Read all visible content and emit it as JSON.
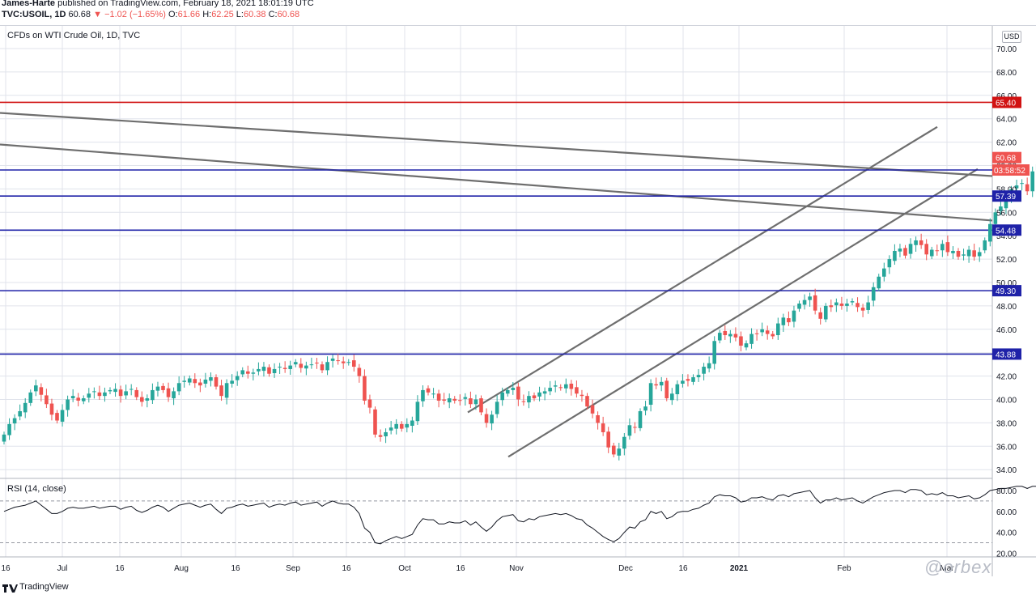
{
  "header": {
    "author": "James-Harte",
    "published": "published on TradingView.com, February 18, 2021 18:01:19 UTC",
    "symbol": "TVC:USOIL, 1D",
    "last": "60.68",
    "change": "−1.02 (−1.65%)",
    "open_label": "O:",
    "open": "61.66",
    "high_label": "H:",
    "high": "62.25",
    "low_label": "L:",
    "low": "60.38",
    "close_label": "C:",
    "close": "60.68"
  },
  "currency_badge": "USD",
  "footer": {
    "brand": "TradingView",
    "watermark": "@orbex"
  },
  "colors": {
    "up": "#26a69a",
    "down": "#ef5350",
    "level": "#1f22a8",
    "resistance": "#d11212",
    "trend": "#6e6e6e",
    "grid": "#e0e3eb"
  },
  "chart_data": [
    {
      "type": "candlestick",
      "title": "CFDs on WTI Crude Oil, 1D, TVC",
      "ylim": [
        33,
        71
      ],
      "y_ticks": [
        "70.00",
        "68.00",
        "66.00",
        "64.00",
        "62.00",
        "60.00",
        "58.00",
        "56.00",
        "54.00",
        "52.00",
        "50.00",
        "48.00",
        "46.00",
        "44.00",
        "42.00",
        "40.00",
        "38.00",
        "36.00",
        "34.00"
      ],
      "x_ticks": [
        "16",
        "Jul",
        "16",
        "Aug",
        "16",
        "Sep",
        "16",
        "Oct",
        "16",
        "Nov",
        "Dec",
        "16",
        "2021",
        "Feb",
        "Mar"
      ],
      "horizontal_levels": [
        {
          "price": 65.4,
          "label": "65.40",
          "color": "#d11212"
        },
        {
          "price": 59.62,
          "label": "59.62",
          "color": "#1f22a8"
        },
        {
          "price": 57.39,
          "label": "57.39",
          "color": "#1f22a8"
        },
        {
          "price": 54.48,
          "label": "54.48",
          "color": "#1f22a8"
        },
        {
          "price": 49.3,
          "label": "49.30",
          "color": "#1f22a8"
        },
        {
          "price": 43.88,
          "label": "43.88",
          "color": "#1f22a8"
        }
      ],
      "price_badges": [
        {
          "price": 60.68,
          "label": "60.68"
        },
        {
          "price": 59.62,
          "label": "03:58:52"
        }
      ],
      "closes": [
        37.0,
        37.9,
        38.4,
        39.0,
        39.7,
        40.6,
        41.2,
        40.4,
        39.6,
        38.7,
        38.2,
        39.1,
        40.0,
        40.3,
        39.9,
        40.1,
        40.5,
        40.7,
        40.3,
        40.6,
        40.8,
        40.9,
        40.3,
        40.7,
        40.9,
        40.2,
        39.8,
        40.1,
        40.8,
        41.1,
        40.8,
        40.2,
        40.7,
        41.4,
        41.6,
        41.8,
        41.4,
        41.2,
        41.7,
        41.9,
        41.1,
        40.3,
        41.4,
        41.6,
        42.0,
        42.5,
        42.2,
        42.3,
        42.6,
        42.8,
        42.2,
        42.6,
        42.8,
        42.6,
        42.9,
        43.2,
        42.7,
        42.9,
        43.0,
        43.1,
        42.5,
        43.2,
        43.5,
        43.3,
        43.1,
        43.2,
        42.8,
        42.0,
        39.9,
        39.3,
        37.0,
        36.8,
        37.2,
        37.6,
        37.9,
        37.5,
        37.9,
        38.2,
        39.8,
        40.8,
        40.6,
        40.5,
        39.9,
        39.9,
        40.1,
        39.9,
        39.9,
        40.2,
        39.6,
        40.0,
        38.9,
        38.0,
        38.7,
        39.8,
        40.6,
        40.8,
        41.0,
        40.0,
        39.8,
        40.3,
        40.1,
        40.6,
        40.7,
        41.0,
        41.2,
        41.0,
        41.3,
        40.9,
        40.5,
        40.3,
        39.4,
        38.8,
        38.0,
        37.2,
        35.9,
        35.3,
        35.8,
        36.8,
        37.8,
        37.6,
        39.0,
        39.4,
        41.4,
        41.2,
        41.5,
        40.1,
        40.5,
        41.3,
        41.6,
        41.6,
        41.9,
        42.1,
        42.8,
        43.1,
        45.0,
        45.7,
        45.5,
        45.6,
        45.3,
        44.6,
        44.8,
        45.6,
        45.6,
        46.0,
        45.6,
        45.4,
        46.5,
        47.0,
        46.6,
        47.6,
        48.2,
        48.5,
        48.8,
        47.6,
        46.9,
        48.0,
        47.9,
        48.3,
        48.0,
        48.2,
        48.4,
        47.9,
        47.6,
        48.3,
        49.6,
        50.5,
        51.2,
        52.0,
        52.7,
        52.9,
        52.3,
        53.3,
        53.6,
        53.2,
        52.4,
        52.8,
        52.7,
        53.3,
        52.6,
        52.7,
        52.2,
        52.4,
        52.8,
        52.2,
        52.6,
        53.6,
        55.0,
        56.0,
        56.5,
        57.1,
        58.0,
        58.3,
        58.5,
        57.8,
        59.5,
        60.1,
        60.5,
        61.7,
        60.68
      ],
      "trendlines": [
        {
          "name": "upper-descending",
          "from": [
            0,
            64.5
          ],
          "to": [
            1226,
            59.1
          ]
        },
        {
          "name": "lower-descending",
          "from": [
            0,
            61.8
          ],
          "to": [
            1226,
            55.3
          ]
        },
        {
          "name": "channel-top",
          "from": [
            578,
            38.9
          ],
          "to": [
            1158,
            63.3
          ]
        },
        {
          "name": "channel-bottom",
          "from": [
            628,
            35.1
          ],
          "to": [
            1208,
            59.7
          ]
        }
      ]
    },
    {
      "type": "line",
      "title": "RSI (14, close)",
      "ylim": [
        20,
        90
      ],
      "y_ticks": [
        "80.00",
        "60.00",
        "40.00",
        "20.00"
      ],
      "bands": [
        70,
        30
      ],
      "values": [
        60,
        62,
        64,
        65,
        66,
        68,
        70,
        66,
        62,
        58,
        58,
        60,
        63,
        64,
        63,
        63,
        64,
        65,
        63,
        64,
        65,
        65,
        62,
        64,
        65,
        61,
        59,
        61,
        64,
        66,
        64,
        60,
        63,
        66,
        67,
        68,
        66,
        64,
        66,
        67,
        62,
        58,
        63,
        64,
        66,
        67,
        65,
        66,
        67,
        68,
        64,
        66,
        67,
        66,
        68,
        69,
        66,
        67,
        68,
        69,
        65,
        68,
        70,
        68,
        67,
        67,
        64,
        58,
        44,
        40,
        30,
        29,
        32,
        34,
        36,
        34,
        36,
        38,
        47,
        53,
        52,
        52,
        48,
        48,
        50,
        49,
        49,
        51,
        47,
        50,
        45,
        41,
        45,
        51,
        55,
        56,
        57,
        51,
        50,
        53,
        52,
        55,
        56,
        57,
        58,
        57,
        58,
        56,
        53,
        52,
        47,
        44,
        40,
        36,
        33,
        31,
        34,
        40,
        45,
        44,
        50,
        52,
        60,
        58,
        60,
        53,
        55,
        59,
        60,
        60,
        62,
        63,
        66,
        68,
        74,
        76,
        75,
        75,
        73,
        69,
        70,
        73,
        73,
        74,
        72,
        71,
        75,
        76,
        74,
        77,
        78,
        79,
        80,
        73,
        68,
        71,
        71,
        73,
        71,
        72,
        73,
        70,
        68,
        71,
        74,
        76,
        78,
        79,
        80,
        80,
        78,
        81,
        81,
        80,
        76,
        77,
        76,
        78,
        75,
        75,
        73,
        74,
        75,
        72,
        73,
        76,
        80,
        81,
        82,
        82,
        83,
        84,
        84,
        82,
        84,
        84,
        85,
        86,
        79
      ]
    }
  ]
}
